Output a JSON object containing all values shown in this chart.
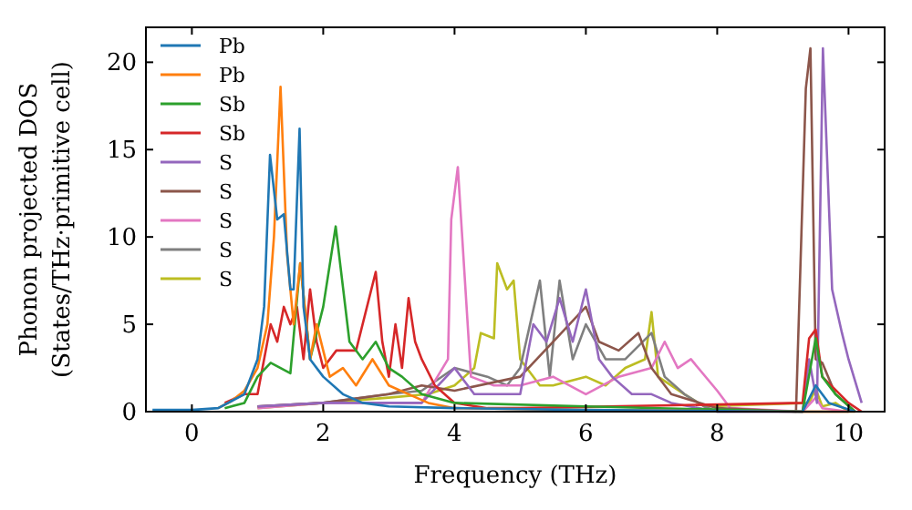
{
  "chart_data": {
    "type": "line",
    "xlabel": "Frequency (THz)",
    "ylabel": "Phonon projected DOS\n(States/THz·primitive cell)",
    "xlim": [
      -0.7,
      10.55
    ],
    "ylim": [
      0,
      22
    ],
    "xticks": [
      0,
      2,
      4,
      6,
      8,
      10
    ],
    "yticks": [
      0,
      5,
      10,
      15,
      20
    ],
    "grid": false,
    "legend": "top left",
    "marker": "none",
    "line_style": "solid",
    "series": [
      {
        "name": "Pb",
        "color": "#1f77b4",
        "x": [
          -0.6,
          0,
          0.4,
          0.6,
          0.8,
          1.0,
          1.1,
          1.19,
          1.3,
          1.4,
          1.5,
          1.55,
          1.64,
          1.7,
          1.8,
          2.0,
          2.3,
          2.6,
          3.0,
          4.0,
          6.0,
          9.3,
          9.5,
          9.7,
          10.1
        ],
        "values": [
          0.1,
          0.1,
          0.2,
          0.6,
          1,
          3,
          6,
          14.7,
          11,
          11.3,
          7,
          7,
          16.2,
          6,
          3,
          2,
          1,
          0.5,
          0.3,
          0.2,
          0.1,
          0,
          1.5,
          0.5,
          0
        ]
      },
      {
        "name": "Pb",
        "color": "#ff7f0e",
        "x": [
          0.4,
          0.6,
          0.8,
          1.0,
          1.15,
          1.25,
          1.35,
          1.45,
          1.55,
          1.65,
          1.8,
          1.9,
          2.1,
          2.3,
          2.5,
          2.75,
          3.0,
          3.3,
          3.6,
          4.0,
          6.0,
          9.3,
          10.1
        ],
        "values": [
          0.2,
          0.6,
          1.2,
          2.5,
          5,
          10,
          18.6,
          9,
          5,
          8.5,
          3,
          5,
          2,
          2.5,
          1.5,
          3,
          1.5,
          1,
          0.5,
          0.2,
          0.1,
          0,
          0
        ]
      },
      {
        "name": "Sb",
        "color": "#2ca02c",
        "x": [
          0.5,
          0.8,
          1.0,
          1.2,
          1.35,
          1.5,
          1.65,
          1.8,
          2.0,
          2.19,
          2.4,
          2.6,
          2.8,
          3.0,
          3.2,
          3.5,
          4.0,
          6.0,
          9.3,
          9.5,
          9.6,
          9.8,
          10.1
        ],
        "values": [
          0.2,
          0.5,
          2,
          2.8,
          2.5,
          2.2,
          8.5,
          3,
          6,
          10.6,
          4,
          3,
          4,
          2.5,
          2,
          1,
          0.5,
          0.3,
          0,
          4.2,
          2,
          1,
          0
        ]
      },
      {
        "name": "Sb",
        "color": "#d62728",
        "x": [
          0.5,
          0.8,
          1.0,
          1.2,
          1.3,
          1.4,
          1.5,
          1.6,
          1.7,
          1.8,
          1.9,
          2.0,
          2.2,
          2.5,
          2.8,
          2.9,
          3.0,
          3.1,
          3.2,
          3.3,
          3.4,
          3.5,
          3.7,
          4.0,
          4.5,
          5.0,
          9.3,
          9.4,
          9.5,
          9.6,
          10.0,
          10.2
        ],
        "values": [
          0.5,
          1,
          1,
          5,
          4,
          6,
          5,
          6,
          3,
          7,
          4,
          2.5,
          3.5,
          3.5,
          8,
          4,
          2,
          5,
          2.5,
          6.5,
          4,
          3,
          1.5,
          0.5,
          0.2,
          0.2,
          0.5,
          4.2,
          4.7,
          2,
          0.5,
          0
        ]
      },
      {
        "name": "S",
        "color": "#9467bd",
        "x": [
          1.0,
          2.0,
          3.5,
          4.0,
          4.3,
          5.0,
          5.2,
          5.4,
          5.6,
          5.8,
          6.0,
          6.2,
          6.4,
          6.7,
          7.0,
          7.3,
          8.0,
          9.3,
          9.4,
          9.52,
          9.61,
          9.75,
          9.9,
          10.0,
          10.2
        ],
        "values": [
          0.3,
          0.5,
          0.5,
          2.5,
          1,
          1,
          5,
          4,
          6.5,
          4,
          7,
          3,
          2,
          1,
          1,
          0.5,
          0,
          0,
          3,
          0.5,
          20.8,
          7,
          4.5,
          3,
          0.5
        ]
      },
      {
        "name": "S",
        "color": "#8c564b",
        "x": [
          1.0,
          2.0,
          3.0,
          3.5,
          4.0,
          5.0,
          5.5,
          6.0,
          6.2,
          6.5,
          6.8,
          7.0,
          7.3,
          8.0,
          9.2,
          9.35,
          9.42,
          9.5,
          9.6,
          9.8,
          10.1
        ],
        "values": [
          0.3,
          0.5,
          1,
          1.5,
          1.2,
          2,
          4,
          6,
          4,
          3.5,
          4.5,
          2.5,
          1,
          0.2,
          0,
          18.5,
          20.8,
          3,
          2.8,
          1,
          0
        ]
      },
      {
        "name": "S",
        "color": "#e377c2",
        "x": [
          1.0,
          2.0,
          3.5,
          3.9,
          3.95,
          4.05,
          4.15,
          4.25,
          4.6,
          5.0,
          5.5,
          6.0,
          6.5,
          7.0,
          7.2,
          7.4,
          7.6,
          8.0,
          8.2,
          9.3,
          9.5,
          9.6,
          10.0
        ],
        "values": [
          0.2,
          0.5,
          0.5,
          3,
          11,
          14,
          8,
          2,
          1.5,
          1.5,
          2,
          1,
          2,
          2.5,
          4,
          2.5,
          3,
          1.2,
          0.2,
          0,
          0.8,
          0.2,
          0
        ]
      },
      {
        "name": "S",
        "color": "#7f7f7f",
        "x": [
          1.0,
          2.0,
          3.0,
          3.5,
          4.0,
          4.5,
          4.8,
          5.0,
          5.3,
          5.45,
          5.6,
          5.8,
          6.0,
          6.3,
          6.6,
          7.0,
          7.2,
          7.5,
          7.8,
          8.0,
          10.0
        ],
        "values": [
          0.3,
          0.5,
          1,
          1.2,
          2.5,
          2,
          1.5,
          2.5,
          7.5,
          2,
          7.5,
          3,
          5,
          3,
          3,
          4.5,
          2,
          1,
          0.3,
          0,
          0
        ]
      },
      {
        "name": "S",
        "color": "#bcbd22",
        "x": [
          1.0,
          2.0,
          3.0,
          3.6,
          4.0,
          4.3,
          4.4,
          4.6,
          4.65,
          4.8,
          4.9,
          5.0,
          5.3,
          5.5,
          6.0,
          6.3,
          6.6,
          6.9,
          7.0,
          7.1,
          7.5,
          7.8,
          9.4,
          9.5,
          9.6,
          9.8,
          10.0
        ],
        "values": [
          0.2,
          0.5,
          0.8,
          1,
          1.5,
          2.5,
          4.5,
          4.2,
          8.5,
          7,
          7.5,
          3,
          1.5,
          1.5,
          2,
          1.5,
          2.5,
          3,
          5.7,
          2,
          1,
          0.3,
          0.5,
          1.3,
          0.3,
          0.5,
          0
        ]
      }
    ]
  }
}
